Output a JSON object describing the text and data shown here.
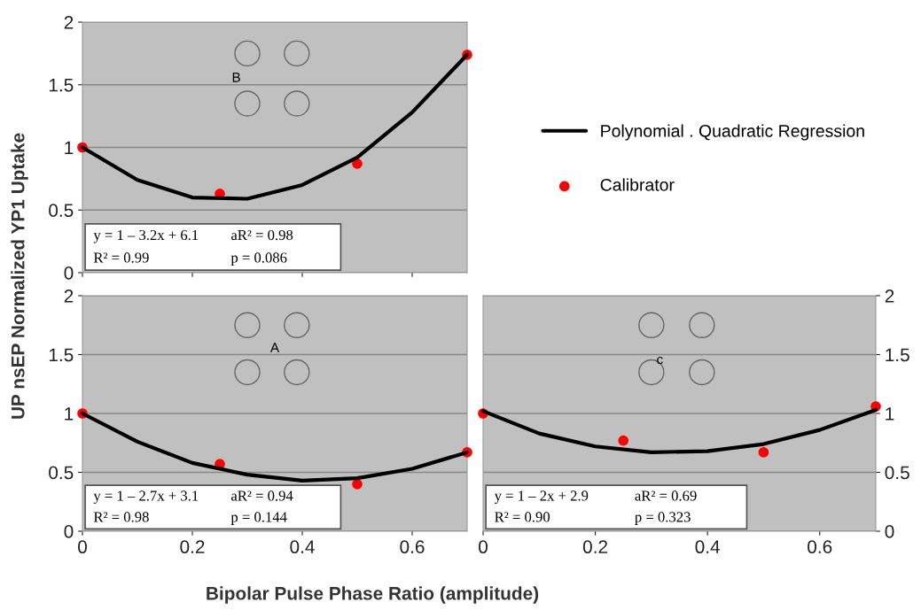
{
  "chart_data": [
    {
      "type": "line",
      "ylabel": "UP nsEP Normalized YP1 Uptake",
      "xlim": [
        0,
        0.7
      ],
      "ylim": [
        0,
        2
      ],
      "yticks": [
        0,
        0.5,
        1,
        1.5,
        2
      ],
      "xticks": [
        0,
        0.2,
        0.4,
        0.6
      ],
      "tick_labels": "y",
      "grid": "y",
      "legend": "right",
      "annotations": [
        "B",
        "y = 1 – 3.2x + 6.1",
        "aR² = 0.98",
        "R² = 0.99",
        "p = 0.086"
      ],
      "series": [
        {
          "name": "Polynomial . Quadratic Regression",
          "color": "#000000",
          "marker": "none",
          "x": [
            0,
            0.1,
            0.2,
            0.3,
            0.4,
            0.5,
            0.6,
            0.7
          ],
          "values": [
            1.0,
            0.74,
            0.6,
            0.59,
            0.7,
            0.92,
            1.28,
            1.74
          ]
        },
        {
          "name": "Calibrator",
          "type": "scatter",
          "color": "#ff0000",
          "marker": "circle",
          "x": [
            0,
            0.25,
            0.5,
            0.7
          ],
          "values": [
            1.0,
            0.63,
            0.87,
            1.74
          ]
        }
      ]
    },
    {
      "type": "line",
      "xlabel": "Bipolar Pulse Phase Ratio (amplitude)",
      "xlim": [
        0,
        0.7
      ],
      "ylim": [
        0,
        2
      ],
      "yticks": [
        0,
        0.5,
        1,
        1.5,
        2
      ],
      "xticks": [
        0,
        0.2,
        0.4,
        0.6
      ],
      "grid": "y",
      "annotations": [
        "A",
        "y = 1 – 2.7x + 3.1",
        "aR² = 0.94",
        "R² = 0.98",
        "p = 0.144"
      ],
      "series": [
        {
          "color": "#000000",
          "marker": "none",
          "x": [
            0,
            0.1,
            0.2,
            0.3,
            0.4,
            0.5,
            0.6,
            0.7
          ],
          "values": [
            1.0,
            0.76,
            0.58,
            0.48,
            0.43,
            0.45,
            0.53,
            0.67
          ]
        },
        {
          "type": "scatter",
          "color": "#ff0000",
          "marker": "circle",
          "x": [
            0,
            0.25,
            0.5,
            0.7
          ],
          "values": [
            1.0,
            0.57,
            0.4,
            0.67
          ]
        }
      ]
    },
    {
      "type": "line",
      "xlim": [
        0,
        0.7
      ],
      "ylim": [
        0,
        2
      ],
      "yticks": [
        0,
        0.5,
        1,
        1.5,
        2
      ],
      "xticks": [
        0,
        0.2,
        0.4,
        0.6
      ],
      "grid": "y",
      "annotations": [
        "c",
        "y = 1 – 2x + 2.9",
        "aR² = 0.69",
        "R² = 0.90",
        "p = 0.323"
      ],
      "series": [
        {
          "color": "#000000",
          "marker": "none",
          "x": [
            0,
            0.1,
            0.2,
            0.3,
            0.4,
            0.5,
            0.6,
            0.7
          ],
          "values": [
            1.02,
            0.83,
            0.72,
            0.67,
            0.68,
            0.74,
            0.86,
            1.03
          ]
        },
        {
          "type": "scatter",
          "color": "#ff0000",
          "marker": "circle",
          "x": [
            0,
            0.25,
            0.5,
            0.7
          ],
          "values": [
            1.0,
            0.77,
            0.67,
            1.06
          ]
        }
      ]
    }
  ]
}
